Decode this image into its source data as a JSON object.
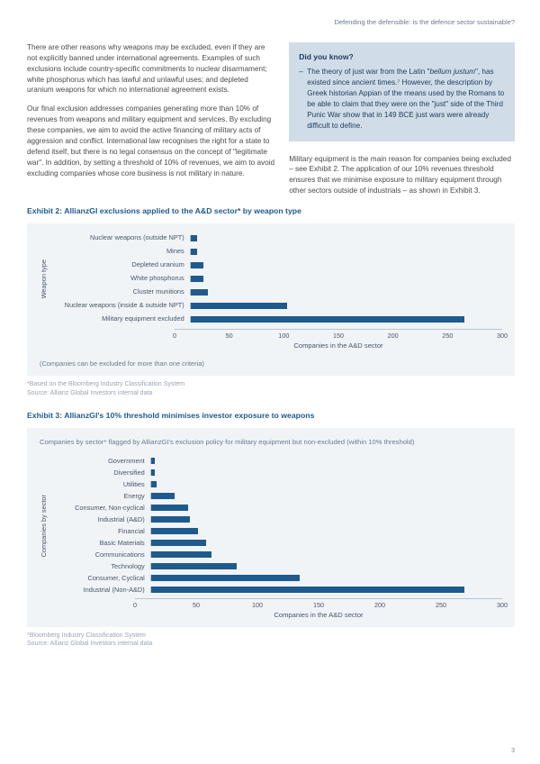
{
  "header": {
    "title": "Defending the defensible: is the defence sector sustainable?"
  },
  "left_col": {
    "p1": "There are other reasons why weapons may be excluded, even if they are not explicitly banned under international agreements. Examples of such exclusions include country-specific commitments to nuclear disarmament; white phosphorus which has lawful and unlawful uses; and depleted uranium weapons for which no international agreement exists.",
    "p2": "Our final exclusion addresses companies generating more than 10% of revenues from weapons and military equipment and services. By excluding these companies, we aim to avoid the active financing of military acts of aggression and conflict. International law recognises the right for a state to defend itself, but there is no legal consensus on the concept of \"legitimate war\". In addition, by setting a threshold of 10% of revenues, we aim to avoid excluding companies whose core business is not military in nature."
  },
  "callout": {
    "title": "Did you know?",
    "item_pre": "The theory of just war from the Latin \"",
    "item_em": "bellum justum",
    "item_post": "\", has existed since ancient times.⁷ However, the description by Greek historian Appian of the means used by the Romans to be able to claim that they were on the \"just\" side of the Third Punic War show that in 149 BCE just wars were already difficult to define."
  },
  "right_para": "Military equipment is the main reason for companies being excluded – see Exhibit 2. The application of our 10% revenues threshold ensures that we minimise exposure to military equipment through other sectors outside of industrials – as shown in Exhibit 3.",
  "exhibit2": {
    "title": "Exhibit 2: AllianzGI exclusions applied to the A&D sector* by weapon type",
    "y_label": "Weapon type",
    "x_label": "Companies in the A&D sector",
    "x_max": 300,
    "x_ticks": [
      0,
      50,
      100,
      150,
      200,
      250,
      300
    ],
    "bar_color": "#1f5a8c",
    "categories": [
      "Nuclear weapons (outside NPT)",
      "Mines",
      "Depleted uranium",
      "White phosphorus",
      "Cluster munitions",
      "Nuclear weapons (inside & outside NPT)",
      "Military equipment excluded"
    ],
    "values": [
      6,
      6,
      12,
      12,
      17,
      93,
      264
    ],
    "note": "(Companies can be excluded for more than one criteria)",
    "footnote1": "*Based on the Bloomberg Industry Classification System",
    "footnote2": "Source: Allianz Global Investors internal data"
  },
  "exhibit3": {
    "title": "Exhibit 3: AllianzGI's 10% threshold minimises investor exposure to weapons",
    "subtitle": "Companies by sector* flagged by AllianzGI's exclusion policy for military equipment but non-excluded (within 10% threshold)",
    "y_label": "Companies by sector",
    "x_label": "Companies in the A&D sector",
    "x_max": 300,
    "x_ticks": [
      0,
      50,
      100,
      150,
      200,
      250,
      300
    ],
    "bar_color": "#1f5a8c",
    "categories": [
      "Government",
      "Diversified",
      "Utilities",
      "Energy",
      "Consumer, Non-cyclical",
      "Industrial (A&D)",
      "Financial",
      "Basic Materials",
      "Communications",
      "Technology",
      "Consumer, Cyclical",
      "Industrial (Non-A&D)"
    ],
    "values": [
      3,
      3,
      5,
      20,
      32,
      33,
      40,
      47,
      52,
      73,
      127,
      268
    ],
    "footnote1": "*Bloomberg Industry Classification System",
    "footnote2": "Source: Allianz Global Investors internal data"
  },
  "page_number": "3"
}
